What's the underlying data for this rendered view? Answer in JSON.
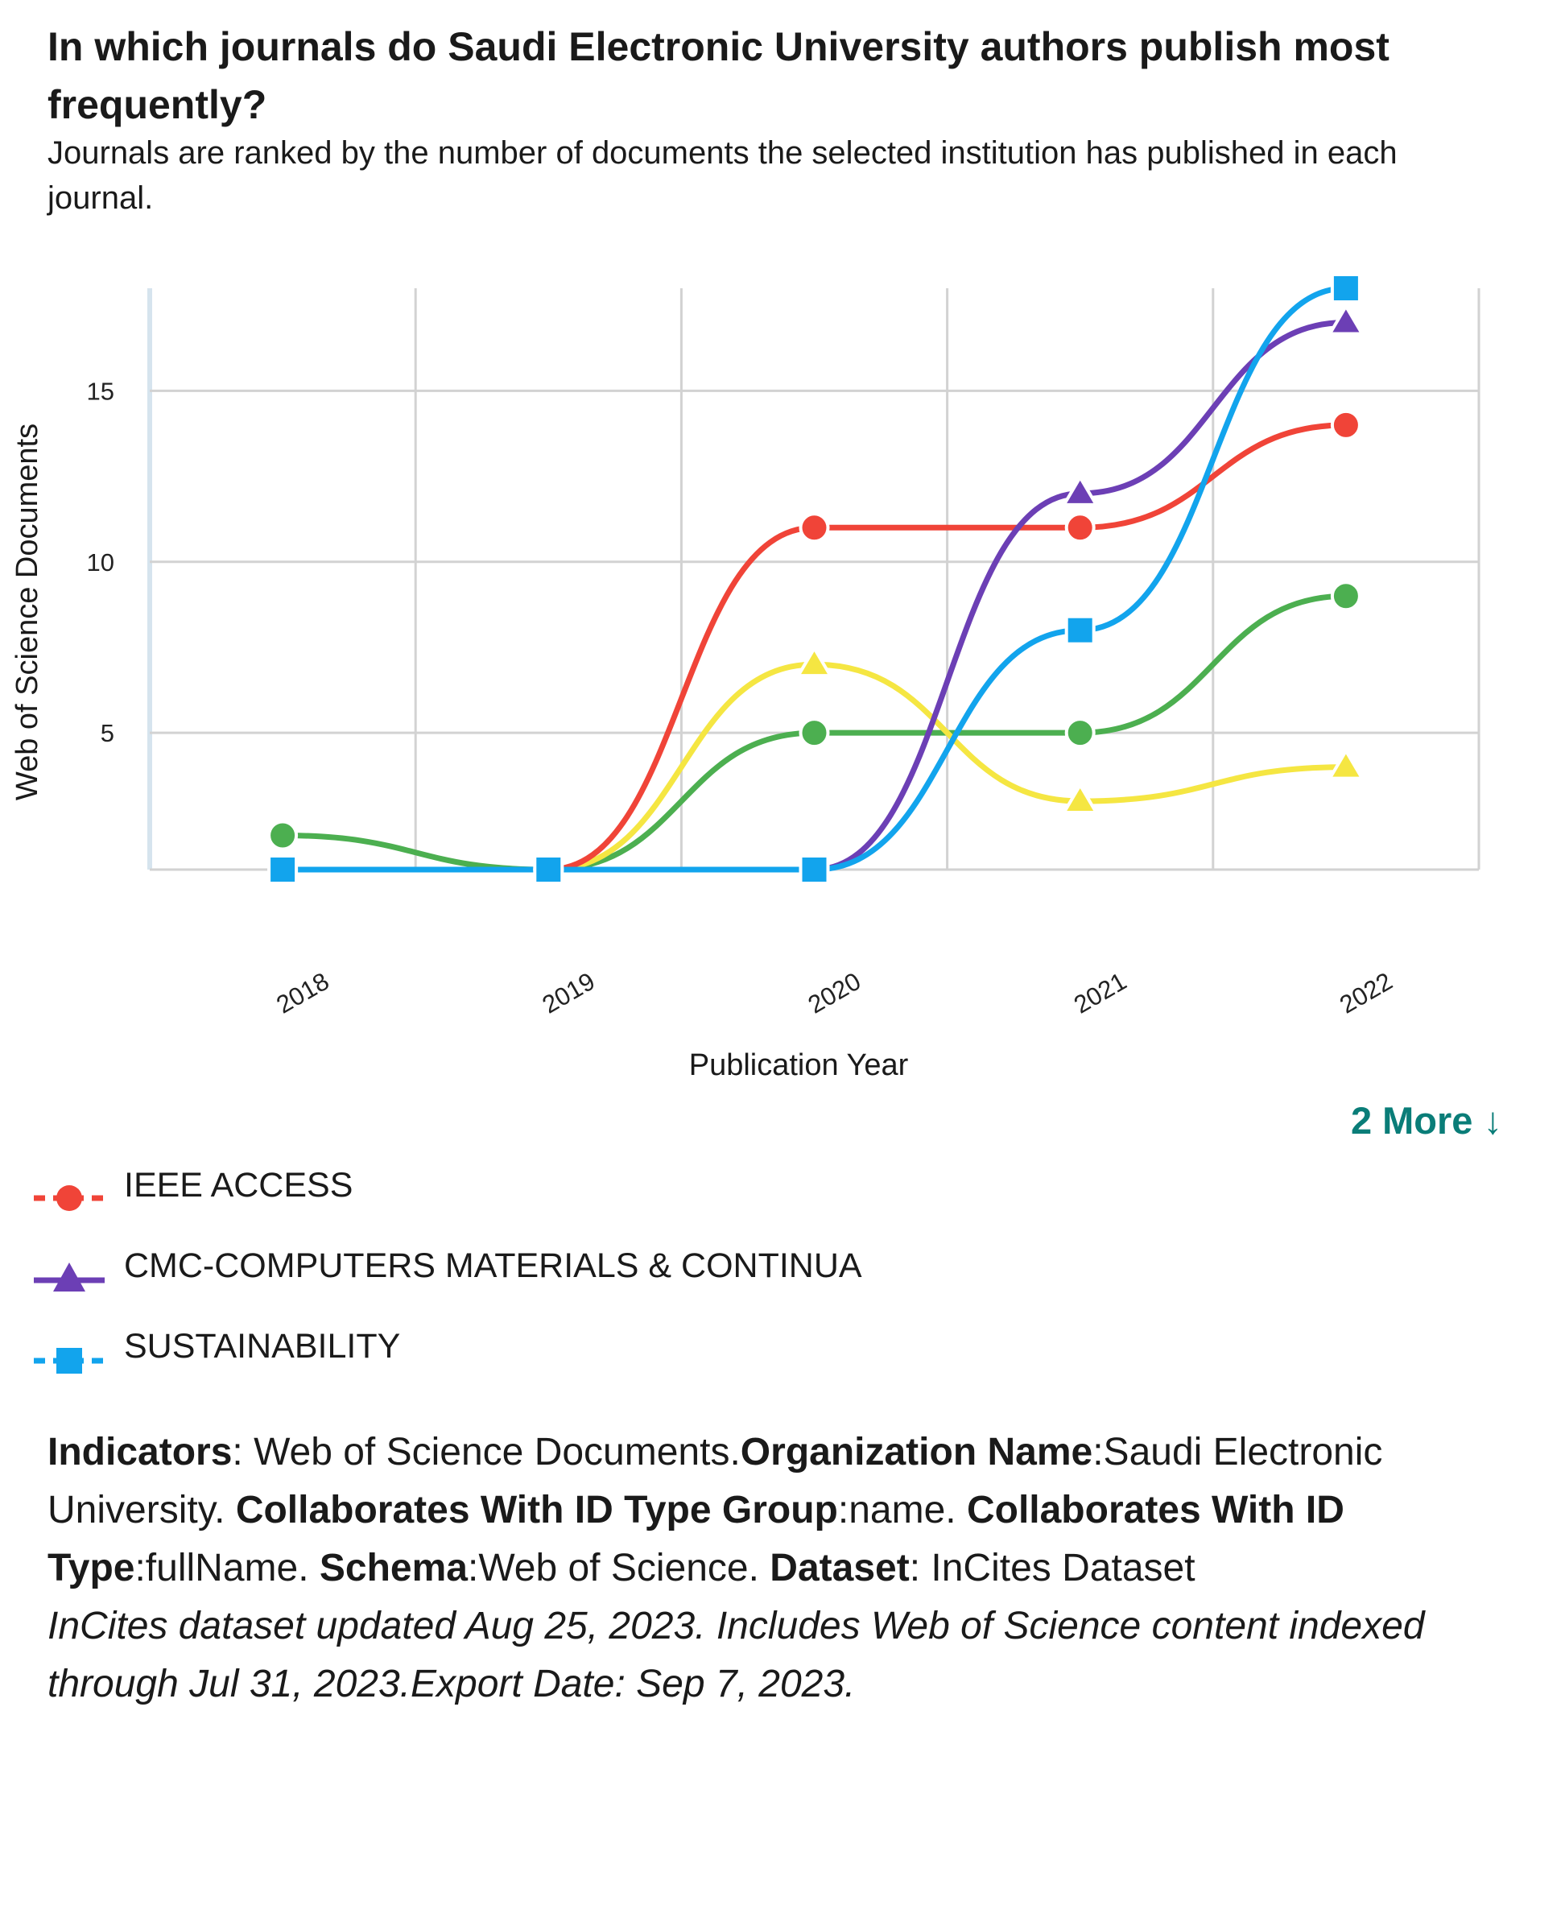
{
  "header": {
    "title": "In which journals do Saudi Electronic University authors publish most frequently?",
    "subtitle": "Journals are ranked by the number of documents the selected institution has published in each journal."
  },
  "chart_data": {
    "type": "line",
    "xlabel": "Publication Year",
    "ylabel": "Web of Science Documents",
    "categories": [
      "2018",
      "2019",
      "2020",
      "2021",
      "2022"
    ],
    "ylim": [
      1,
      18
    ],
    "yticks": [
      5,
      10,
      15
    ],
    "grid": true,
    "series": [
      {
        "name": "IEEE ACCESS",
        "marker": "circle",
        "color": "#f04438",
        "values": [
          1,
          1,
          11,
          11,
          14
        ],
        "in_legend": true
      },
      {
        "name": "CMC-COMPUTERS MATERIALS & CONTINUA",
        "marker": "triangle",
        "color": "#6c3fb5",
        "values": [
          1,
          1,
          1,
          12,
          17
        ],
        "in_legend": true
      },
      {
        "name": "SUSTAINABILITY",
        "marker": "square",
        "color": "#12a4ed",
        "values": [
          1,
          1,
          1,
          8,
          18
        ],
        "in_legend": true
      },
      {
        "name": "",
        "marker": "circle",
        "color": "#4caf50",
        "values": [
          2,
          1,
          5,
          5,
          9
        ],
        "in_legend": false
      },
      {
        "name": "",
        "marker": "triangle",
        "color": "#f5e642",
        "values": [
          1,
          1,
          7,
          3,
          4
        ],
        "in_legend": false
      }
    ]
  },
  "legend": {
    "more_label": "2 More ↓",
    "items": [
      {
        "label": "IEEE ACCESS",
        "color": "#f04438"
      },
      {
        "label": "CMC-COMPUTERS MATERIALS & CONTINUA",
        "color": "#6c3fb5"
      },
      {
        "label": "SUSTAINABILITY",
        "color": "#12a4ed"
      }
    ]
  },
  "info": {
    "indicators_key": "Indicators",
    "indicators_val": ": Web of Science Documents.",
    "org_key": "Organization Name",
    "org_val": ":Saudi Electronic University. ",
    "collab_group_key": "Collaborates With ID Type Group",
    "collab_group_val": ":name. ",
    "collab_type_key": "Collaborates With ID Type",
    "collab_type_val": ":fullName. ",
    "schema_key": "Schema",
    "schema_val": ":Web of Science. ",
    "dataset_key": "Dataset",
    "dataset_val": ": InCites Dataset",
    "note": "InCites dataset updated Aug 25, 2023. Includes Web of Science content indexed through Jul 31, 2023.Export Date: Sep 7, 2023."
  }
}
